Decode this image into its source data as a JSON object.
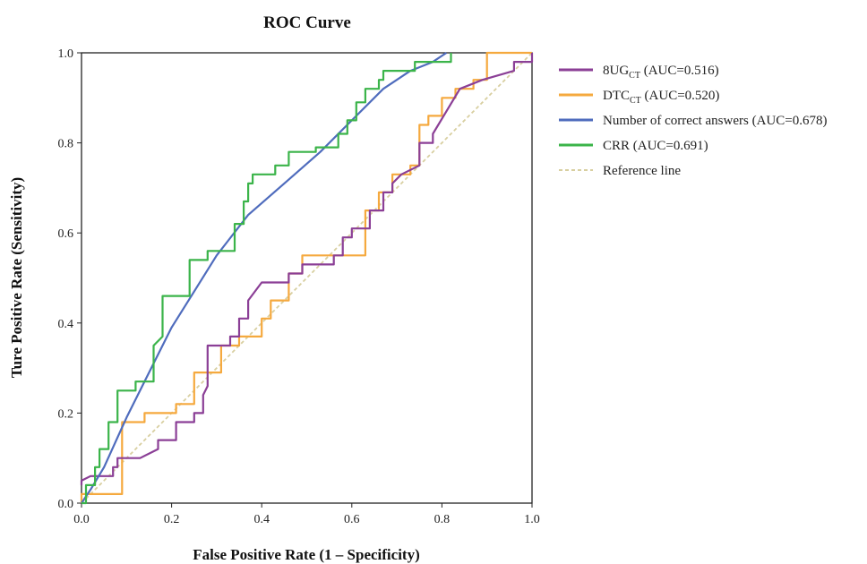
{
  "chart_data": {
    "type": "line",
    "title": "ROC Curve",
    "xlabel": "False Positive Rate (1 – Specificity)",
    "ylabel": "Ture Positive Rate (Sensitivity)",
    "xlim": [
      0,
      1
    ],
    "ylim": [
      0,
      1
    ],
    "x_ticks": [
      "0.0",
      "0.2",
      "0.4",
      "0.6",
      "0.8",
      "1.0"
    ],
    "y_ticks": [
      "0.0",
      "0.2",
      "0.4",
      "0.6",
      "0.8",
      "1.0"
    ],
    "grid": false,
    "legend_position": "right",
    "series": [
      {
        "name": "8UG",
        "name_sub": "CT",
        "name_suffix": " (AUC=0.516)",
        "color": "#8b3f96",
        "dash": false,
        "x": [
          0,
          0,
          0.02,
          0.02,
          0.07,
          0.07,
          0.08,
          0.08,
          0.13,
          0.17,
          0.17,
          0.21,
          0.21,
          0.25,
          0.25,
          0.27,
          0.27,
          0.28,
          0.28,
          0.33,
          0.33,
          0.35,
          0.35,
          0.37,
          0.37,
          0.4,
          0.4,
          0.46,
          0.46,
          0.49,
          0.49,
          0.52,
          0.52,
          0.56,
          0.56,
          0.58,
          0.58,
          0.6,
          0.6,
          0.64,
          0.64,
          0.67,
          0.67,
          0.69,
          0.69,
          0.71,
          0.75,
          0.75,
          0.78,
          0.78,
          0.84,
          0.84,
          0.89,
          0.89,
          0.96,
          0.96,
          1.0,
          1.0
        ],
        "y": [
          0.04,
          0.05,
          0.06,
          0.06,
          0.06,
          0.08,
          0.08,
          0.1,
          0.1,
          0.12,
          0.14,
          0.14,
          0.18,
          0.18,
          0.2,
          0.2,
          0.24,
          0.26,
          0.35,
          0.35,
          0.37,
          0.37,
          0.41,
          0.41,
          0.45,
          0.49,
          0.49,
          0.49,
          0.51,
          0.51,
          0.53,
          0.53,
          0.53,
          0.53,
          0.55,
          0.55,
          0.59,
          0.59,
          0.61,
          0.61,
          0.65,
          0.65,
          0.69,
          0.69,
          0.71,
          0.73,
          0.75,
          0.8,
          0.8,
          0.82,
          0.92,
          0.92,
          0.94,
          0.94,
          0.96,
          0.98,
          0.98,
          1.0
        ]
      },
      {
        "name": "DTC",
        "name_sub": "CT",
        "name_suffix": " (AUC=0.520)",
        "color": "#f5a93e",
        "dash": false,
        "x": [
          0,
          0,
          0.09,
          0.09,
          0.11,
          0.11,
          0.14,
          0.14,
          0.19,
          0.19,
          0.21,
          0.21,
          0.25,
          0.25,
          0.29,
          0.29,
          0.31,
          0.31,
          0.35,
          0.35,
          0.4,
          0.4,
          0.42,
          0.42,
          0.46,
          0.46,
          0.49,
          0.49,
          0.63,
          0.63,
          0.66,
          0.66,
          0.69,
          0.69,
          0.73,
          0.73,
          0.75,
          0.75,
          0.77,
          0.77,
          0.8,
          0.8,
          0.83,
          0.83,
          0.87,
          0.87,
          0.9,
          0.9,
          0.94,
          0.94,
          1.0
        ],
        "y": [
          0,
          0.02,
          0.02,
          0.18,
          0.18,
          0.18,
          0.18,
          0.2,
          0.2,
          0.2,
          0.2,
          0.22,
          0.22,
          0.29,
          0.29,
          0.29,
          0.29,
          0.35,
          0.35,
          0.37,
          0.37,
          0.41,
          0.41,
          0.45,
          0.45,
          0.51,
          0.51,
          0.55,
          0.55,
          0.65,
          0.65,
          0.69,
          0.69,
          0.73,
          0.73,
          0.75,
          0.75,
          0.84,
          0.84,
          0.86,
          0.86,
          0.9,
          0.9,
          0.92,
          0.92,
          0.94,
          0.94,
          1.0,
          1.0,
          1.0,
          1.0
        ]
      },
      {
        "name": "Number of correct answers",
        "name_sub": "",
        "name_suffix": " (AUC=0.678)",
        "color": "#4f6cbd",
        "dash": false,
        "x": [
          0,
          0.02,
          0.05,
          0.1,
          0.15,
          0.2,
          0.25,
          0.3,
          0.37,
          0.45,
          0.53,
          0.6,
          0.67,
          0.73,
          0.78,
          0.81
        ],
        "y": [
          0,
          0.03,
          0.08,
          0.19,
          0.29,
          0.39,
          0.47,
          0.55,
          0.64,
          0.71,
          0.78,
          0.85,
          0.92,
          0.96,
          0.98,
          1.0
        ]
      },
      {
        "name": "CRR",
        "name_sub": "",
        "name_suffix": " (AUC=0.691)",
        "color": "#3bb44a",
        "dash": false,
        "x": [
          0,
          0.01,
          0.01,
          0.03,
          0.03,
          0.04,
          0.04,
          0.06,
          0.06,
          0.08,
          0.08,
          0.12,
          0.12,
          0.16,
          0.16,
          0.18,
          0.18,
          0.24,
          0.24,
          0.28,
          0.28,
          0.34,
          0.34,
          0.36,
          0.36,
          0.37,
          0.37,
          0.38,
          0.38,
          0.43,
          0.43,
          0.46,
          0.46,
          0.52,
          0.52,
          0.57,
          0.57,
          0.59,
          0.59,
          0.61,
          0.61,
          0.63,
          0.63,
          0.66,
          0.66,
          0.67,
          0.67,
          0.72,
          0.72,
          0.74,
          0.74,
          0.82,
          0.82
        ],
        "y": [
          0,
          0,
          0.04,
          0.04,
          0.08,
          0.08,
          0.12,
          0.12,
          0.18,
          0.18,
          0.25,
          0.25,
          0.27,
          0.27,
          0.35,
          0.37,
          0.46,
          0.46,
          0.54,
          0.54,
          0.56,
          0.56,
          0.62,
          0.62,
          0.67,
          0.67,
          0.71,
          0.71,
          0.73,
          0.73,
          0.75,
          0.75,
          0.78,
          0.78,
          0.79,
          0.79,
          0.82,
          0.82,
          0.85,
          0.85,
          0.89,
          0.89,
          0.92,
          0.92,
          0.94,
          0.94,
          0.96,
          0.96,
          0.96,
          0.96,
          0.98,
          0.98,
          1.0
        ]
      },
      {
        "name": "Reference line",
        "name_sub": "",
        "name_suffix": "",
        "color": "#d8cfa0",
        "dash": true,
        "x": [
          0,
          1
        ],
        "y": [
          0,
          1
        ]
      }
    ]
  }
}
